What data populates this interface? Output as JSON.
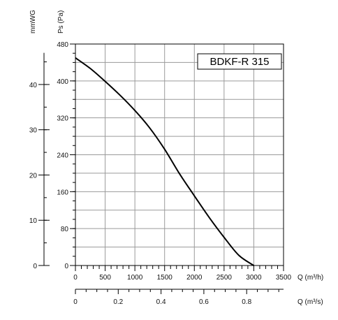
{
  "chart_data": {
    "type": "line",
    "model_label": "BDKF-R 315",
    "y_units": {
      "secondary": "mmWG",
      "primary": "Ps (Pa)"
    },
    "x_units": {
      "primary": "Q (m³/h)",
      "secondary": "Q (m³/s)"
    },
    "xlim": [
      0,
      3500
    ],
    "ylim": [
      0,
      480
    ],
    "x_ticks": [
      "0",
      "500",
      "1000",
      "1500",
      "2000",
      "2500",
      "3000",
      "3500"
    ],
    "y_ticks": [
      "0",
      "80",
      "160",
      "240",
      "320",
      "400",
      "480"
    ],
    "mmwg_ticks": [
      "0",
      "10",
      "20",
      "30",
      "40"
    ],
    "m3s_ticks": [
      "0",
      "0.2",
      "0.4",
      "0.6",
      "0.8"
    ],
    "grid": true,
    "series": [
      {
        "x": [
          0,
          250,
          500,
          750,
          1000,
          1250,
          1500,
          1750,
          2000,
          2250,
          2500,
          2750,
          3000
        ],
        "y": [
          450,
          427,
          399,
          369,
          336,
          298,
          252,
          199,
          151,
          104,
          61,
          22,
          0
        ]
      }
    ]
  }
}
